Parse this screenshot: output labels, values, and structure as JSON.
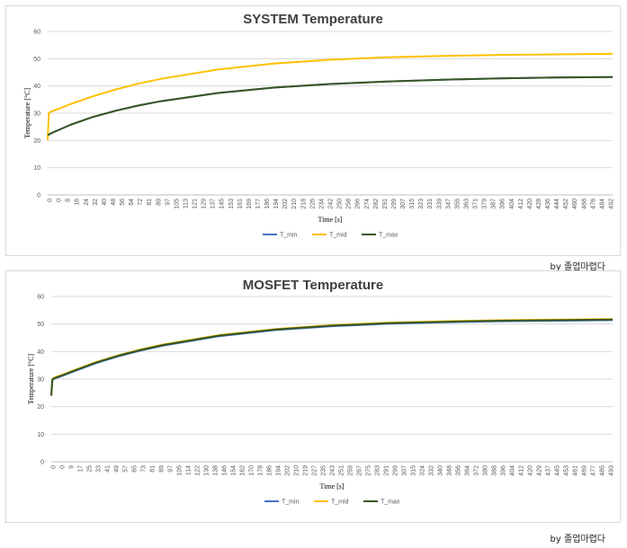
{
  "chart_data": [
    {
      "type": "line",
      "title": "SYSTEM Temperature",
      "xlabel": "Time [s]",
      "ylabel": "Temperature [°C]",
      "ylim": [
        0,
        60
      ],
      "yticks": [
        0,
        10,
        20,
        30,
        40,
        50,
        60
      ],
      "xticks": [
        "0",
        "0",
        "8",
        "16",
        "24",
        "32",
        "40",
        "48",
        "56",
        "64",
        "72",
        "81",
        "89",
        "97",
        "105",
        "113",
        "121",
        "129",
        "137",
        "145",
        "153",
        "161",
        "169",
        "177",
        "186",
        "194",
        "202",
        "210",
        "218",
        "226",
        "234",
        "242",
        "250",
        "258",
        "266",
        "274",
        "282",
        "291",
        "299",
        "307",
        "315",
        "323",
        "331",
        "339",
        "347",
        "355",
        "363",
        "371",
        "379",
        "387",
        "396",
        "404",
        "412",
        "420",
        "428",
        "436",
        "444",
        "452",
        "460",
        "468",
        "476",
        "484",
        "492"
      ],
      "x": [
        0,
        1,
        2,
        5,
        10,
        20,
        40,
        60,
        80,
        100,
        150,
        200,
        250,
        300,
        350,
        400,
        450,
        500
      ],
      "series": [
        {
          "name": "T_min",
          "color": "#4472c4",
          "values": [
            22.0,
            22.2,
            22.4,
            23.0,
            23.9,
            25.7,
            28.6,
            30.9,
            32.8,
            34.4,
            37.4,
            39.4,
            40.7,
            41.6,
            42.3,
            42.8,
            43.1,
            43.3
          ]
        },
        {
          "name": "T_mid",
          "color": "#ffc000",
          "values": [
            20.0,
            30.0,
            30.4,
            30.9,
            31.6,
            33.3,
            36.2,
            38.7,
            40.8,
            42.6,
            46.0,
            48.2,
            49.6,
            50.5,
            51.0,
            51.4,
            51.6,
            51.8
          ]
        },
        {
          "name": "T_max",
          "color": "#375623",
          "values": [
            22.0,
            22.2,
            22.4,
            23.0,
            23.9,
            25.7,
            28.6,
            30.9,
            32.8,
            34.4,
            37.4,
            39.4,
            40.7,
            41.6,
            42.3,
            42.8,
            43.1,
            43.3
          ]
        }
      ],
      "grid": true,
      "legend": "bottom"
    },
    {
      "type": "line",
      "title": "MOSFET Temperature",
      "xlabel": "Time [s]",
      "ylabel": "Temperature [°C]",
      "ylim": [
        0,
        60
      ],
      "yticks": [
        0,
        10,
        20,
        30,
        40,
        50,
        60
      ],
      "xticks": [
        "0",
        "0",
        "9",
        "17",
        "25",
        "33",
        "41",
        "49",
        "57",
        "65",
        "73",
        "81",
        "89",
        "97",
        "105",
        "114",
        "122",
        "130",
        "138",
        "146",
        "154",
        "162",
        "170",
        "178",
        "186",
        "194",
        "202",
        "210",
        "219",
        "227",
        "235",
        "243",
        "251",
        "259",
        "267",
        "275",
        "283",
        "291",
        "299",
        "307",
        "315",
        "324",
        "332",
        "340",
        "348",
        "356",
        "364",
        "372",
        "380",
        "388",
        "396",
        "404",
        "412",
        "420",
        "429",
        "437",
        "445",
        "453",
        "461",
        "469",
        "477",
        "485",
        "493"
      ],
      "x": [
        0,
        1,
        2,
        5,
        10,
        20,
        40,
        60,
        80,
        100,
        150,
        200,
        250,
        300,
        350,
        400,
        450,
        500
      ],
      "series": [
        {
          "name": "T_min",
          "color": "#4472c4",
          "values": [
            24.0,
            29.5,
            30.0,
            30.5,
            31.2,
            32.8,
            35.8,
            38.3,
            40.4,
            42.2,
            45.6,
            47.8,
            49.2,
            50.1,
            50.6,
            51.0,
            51.2,
            51.4
          ]
        },
        {
          "name": "T_mid",
          "color": "#ffc000",
          "values": [
            24.0,
            30.0,
            30.4,
            30.9,
            31.6,
            33.2,
            36.2,
            38.7,
            40.8,
            42.6,
            46.0,
            48.2,
            49.6,
            50.5,
            51.0,
            51.4,
            51.6,
            51.8
          ]
        },
        {
          "name": "T_max",
          "color": "#375623",
          "values": [
            24.0,
            29.8,
            30.2,
            30.7,
            31.4,
            33.0,
            36.0,
            38.5,
            40.6,
            42.4,
            45.8,
            48.0,
            49.4,
            50.3,
            50.8,
            51.2,
            51.4,
            51.6
          ]
        }
      ],
      "grid": true,
      "legend": "bottom"
    }
  ],
  "credits": [
    "by 졸업마렵다",
    "by 졸업마렵다"
  ]
}
